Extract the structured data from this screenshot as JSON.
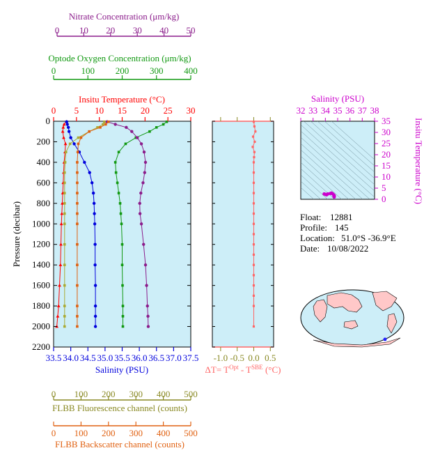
{
  "colors": {
    "nitrate": "#8b1c8b",
    "oxygen": "#119911",
    "temperature": "#ff0000",
    "salinity": "#0000dd",
    "fluorescence": "#aaaa33",
    "backscatter": "#e06010",
    "delta_t": "#ff6666",
    "ts_axis": "#cc00cc",
    "panel_bg": "#cdeef8",
    "axis_olive": "#888822"
  },
  "float_info": {
    "float_label": "Float:",
    "float_value": "12881",
    "profile_label": "Profile:",
    "profile_value": "145",
    "location_label": "Location:",
    "location_value": "51.0°S  -36.9°E",
    "date_label": "Date:",
    "date_value": "10/08/2022"
  },
  "chart_data": [
    {
      "type": "line",
      "panel": "main-profile",
      "ylabel": "Pressure (decibar)",
      "y_ticks": [
        "0",
        "200",
        "400",
        "600",
        "800",
        "1000",
        "1200",
        "1400",
        "1600",
        "1800",
        "2000",
        "2200"
      ],
      "ylim": [
        2200,
        0
      ],
      "axes": {
        "nitrate": {
          "label": "Nitrate Concentration (μm/kg)",
          "ticks": [
            "0",
            "10",
            "20",
            "30",
            "40",
            "50"
          ],
          "lim": [
            0,
            50
          ]
        },
        "oxygen": {
          "label": "Optode Oxygen Concentration (μm/kg)",
          "ticks": [
            "0",
            "100",
            "200",
            "300",
            "400"
          ],
          "lim": [
            0,
            400
          ]
        },
        "temperature": {
          "label": "Insitu Temperature (°C)",
          "ticks": [
            "0",
            "5",
            "10",
            "15",
            "20",
            "25",
            "30"
          ],
          "lim": [
            0,
            30
          ]
        },
        "salinity": {
          "label": "Salinity (PSU)",
          "ticks": [
            "33.5",
            "34.0",
            "34.5",
            "35.0",
            "35.5",
            "36.0",
            "36.5",
            "37.0",
            "37.5"
          ],
          "lim": [
            33.5,
            37.5
          ]
        },
        "fluorescence": {
          "label": "FLBB Fluorescence channel (counts)",
          "ticks": [
            "0",
            "100",
            "200",
            "300",
            "400",
            "500"
          ],
          "lim": [
            0,
            500
          ]
        },
        "backscatter": {
          "label": "FLBB Backscatter channel (counts)",
          "ticks": [
            "0",
            "100",
            "200",
            "300",
            "400",
            "500"
          ],
          "lim": [
            0,
            500
          ]
        }
      },
      "series": [
        {
          "name": "Insitu Temperature (°C)",
          "key": "temperature",
          "x": [
            2.8,
            2.3,
            2.1,
            2.0,
            2.2,
            2.6,
            2.5,
            2.3,
            2.2,
            2.1,
            2.0,
            1.9,
            1.8,
            1.7,
            1.6,
            1.5,
            1.3,
            1.1,
            0.9,
            0.7
          ],
          "y": [
            5,
            30,
            60,
            100,
            160,
            220,
            300,
            400,
            500,
            600,
            700,
            800,
            900,
            1000,
            1200,
            1400,
            1600,
            1800,
            1900,
            2000
          ]
        },
        {
          "name": "Salinity (PSU)",
          "key": "salinity",
          "x": [
            33.88,
            33.9,
            33.93,
            33.95,
            34.0,
            34.1,
            34.25,
            34.4,
            34.55,
            34.62,
            34.66,
            34.68,
            34.69,
            34.7,
            34.71,
            34.71,
            34.72,
            34.72,
            34.72,
            34.72
          ],
          "y": [
            5,
            30,
            60,
            100,
            160,
            220,
            300,
            400,
            500,
            600,
            700,
            800,
            900,
            1000,
            1200,
            1400,
            1600,
            1800,
            1900,
            2000
          ]
        },
        {
          "name": "Optode Oxygen Concentration (μm/kg)",
          "key": "oxygen",
          "x": [
            330,
            320,
            300,
            280,
            240,
            210,
            190,
            180,
            182,
            186,
            190,
            194,
            196,
            198,
            200,
            200,
            201,
            202,
            202,
            202
          ],
          "y": [
            5,
            30,
            60,
            100,
            160,
            220,
            300,
            400,
            500,
            600,
            700,
            800,
            900,
            1000,
            1200,
            1400,
            1600,
            1800,
            1900,
            2000
          ]
        },
        {
          "name": "Nitrate Concentration (μm/kg)",
          "key": "nitrate",
          "x": [
            19.5,
            22.5,
            26.5,
            28.5,
            30.5,
            32.0,
            33.0,
            33.5,
            33.2,
            32.6,
            31.8,
            31.4,
            31.5,
            32.0,
            32.8,
            33.5,
            33.9,
            34.2,
            34.4,
            34.5
          ],
          "y": [
            5,
            30,
            60,
            100,
            160,
            220,
            300,
            400,
            500,
            600,
            700,
            800,
            900,
            1000,
            1200,
            1400,
            1600,
            1800,
            1900,
            2000
          ]
        },
        {
          "name": "FLBB Fluorescence channel (counts)",
          "key": "fluorescence",
          "x": [
            185,
            180,
            160,
            130,
            90,
            60,
            45,
            42,
            40,
            40,
            40,
            40,
            40,
            40,
            40,
            40,
            40,
            40,
            40,
            40
          ],
          "y": [
            5,
            30,
            60,
            100,
            160,
            220,
            300,
            400,
            500,
            600,
            700,
            800,
            900,
            1000,
            1200,
            1400,
            1600,
            1800,
            1900,
            2000
          ]
        },
        {
          "name": "FLBB Backscatter channel (counts)",
          "key": "backscatter",
          "x": [
            200,
            190,
            170,
            130,
            100,
            90,
            88,
            86,
            86,
            86,
            86,
            86,
            86,
            86,
            86,
            86,
            86,
            86,
            86,
            86
          ],
          "y": [
            5,
            30,
            60,
            100,
            160,
            220,
            300,
            400,
            500,
            600,
            700,
            800,
            900,
            1000,
            1200,
            1400,
            1600,
            1800,
            1900,
            2000
          ]
        }
      ]
    },
    {
      "type": "scatter",
      "panel": "delta-t",
      "xlabel": "ΔT= T",
      "xlabel_sup1": "Opt",
      "xlabel_mid": " - T",
      "xlabel_sup2": "SBE",
      "xlabel_unit": " (°C)",
      "x_ticks": [
        "-1.0",
        "-0.5",
        "0.0",
        "0.5"
      ],
      "xlim": [
        -1.25,
        0.6
      ],
      "ylim": [
        2200,
        0
      ],
      "series": [
        {
          "name": "ΔT",
          "x": [
            0.0,
            0.02,
            0.05,
            -0.02,
            0.03,
            -0.03,
            0.02,
            0.01,
            0.0,
            0.0,
            0.0,
            0.0,
            0.0,
            0.0,
            0.0,
            0.0,
            0.0,
            0.0,
            0.0,
            0.0,
            0.0,
            0.0,
            0.0,
            0.0
          ],
          "y": [
            5,
            50,
            100,
            150,
            200,
            250,
            300,
            350,
            400,
            500,
            600,
            700,
            800,
            900,
            1000,
            1100,
            1200,
            1300,
            1400,
            1500,
            1600,
            1700,
            1800,
            2000
          ]
        }
      ]
    },
    {
      "type": "scatter",
      "panel": "ts-diagram",
      "xlabel": "Salinity (PSU)",
      "ylabel": "Insitu Temperature (°C)",
      "x_ticks": [
        "32",
        "33",
        "34",
        "35",
        "36",
        "37",
        "38"
      ],
      "y_ticks": [
        "0",
        "5",
        "10",
        "15",
        "20",
        "25",
        "30",
        "35"
      ],
      "xlim": [
        32,
        38
      ],
      "ylim": [
        0,
        35
      ],
      "series": [
        {
          "name": "T-S",
          "x": [
            34.7,
            34.72,
            34.68,
            34.6,
            34.4,
            34.2,
            34.0,
            33.9,
            34.72,
            34.72,
            34.5,
            34.1
          ],
          "y": [
            1.2,
            1.6,
            2.0,
            2.4,
            2.6,
            2.4,
            2.2,
            2.4,
            1.0,
            1.4,
            2.8,
            2.0
          ]
        }
      ]
    }
  ],
  "map": {
    "marker_color": "#2222ff"
  }
}
